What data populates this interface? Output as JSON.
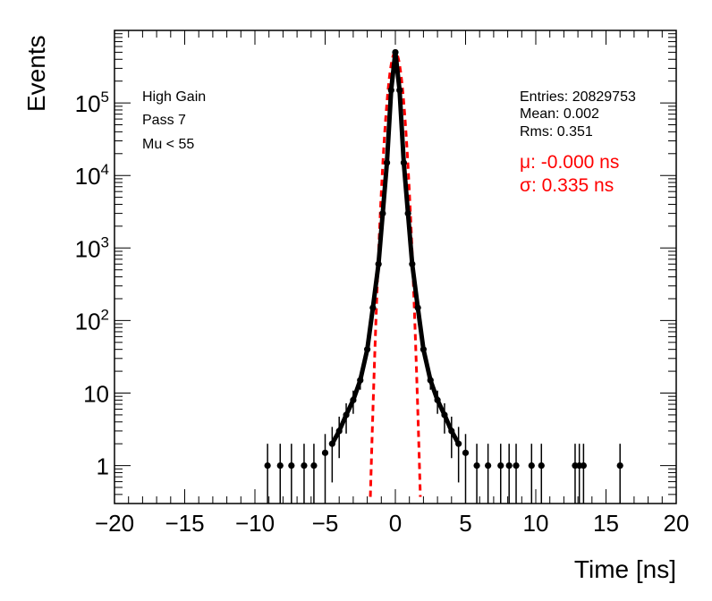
{
  "chart_data": {
    "type": "scatter",
    "title": "",
    "xlabel": "Time [ns]",
    "ylabel": "Events",
    "xlim": [
      -20,
      20
    ],
    "ylim": [
      0.3,
      1000000
    ],
    "y_scale": "log",
    "grid": false,
    "x_ticks": [
      -20,
      -15,
      -10,
      -5,
      0,
      5,
      10,
      15,
      20
    ],
    "x_tick_labels": [
      "−20",
      "−15",
      "−10",
      "−5",
      "0",
      "5",
      "10",
      "15",
      "20"
    ],
    "y_ticks": [
      1,
      10,
      100,
      1000,
      10000,
      100000
    ],
    "y_tick_labels": [
      "1",
      "10",
      "10^2",
      "10^3",
      "10^4",
      "10^5"
    ],
    "left_annotations": [
      "High Gain",
      "Pass 7",
      "Mu < 55"
    ],
    "stats": {
      "entries": "Entries: 20829753",
      "mean": "Mean: 0.002",
      "rms": "Rms: 0.351"
    },
    "fit_annotations": {
      "mu": "μ: -0.000 ns",
      "sigma": "σ: 0.335 ns"
    },
    "series": [
      {
        "type": "points_with_error_bars",
        "color": "#000000",
        "x": [
          -9.1,
          -8.2,
          -7.4,
          -6.5,
          -5.8,
          -5.0,
          -4.5,
          -4.0,
          -3.5,
          -3.0,
          -2.5,
          -2.0,
          -1.6,
          -1.2,
          -0.9,
          -0.6,
          -0.3,
          0.0,
          0.3,
          0.6,
          0.9,
          1.2,
          1.6,
          2.0,
          2.5,
          3.0,
          3.5,
          4.0,
          4.5,
          5.0,
          5.8,
          6.6,
          7.5,
          8.1,
          8.6,
          9.7,
          10.4,
          12.8,
          13.1,
          13.4,
          16.0
        ],
        "y": [
          1,
          1,
          1,
          1,
          1,
          1.5,
          2,
          3,
          5,
          8,
          15,
          40,
          150,
          600,
          3000,
          15000,
          150000,
          500000,
          150000,
          15000,
          3000,
          600,
          150,
          40,
          15,
          8,
          5,
          3,
          2,
          1.5,
          1,
          1,
          1,
          1,
          1,
          1,
          1,
          1,
          1,
          1,
          1
        ]
      },
      {
        "type": "fit_curve",
        "color": "#ff0000",
        "style": "dashed",
        "mu": 0.0,
        "sigma": 0.335,
        "amplitude": 500000,
        "x_range": [
          -1.9,
          1.9
        ]
      }
    ]
  }
}
